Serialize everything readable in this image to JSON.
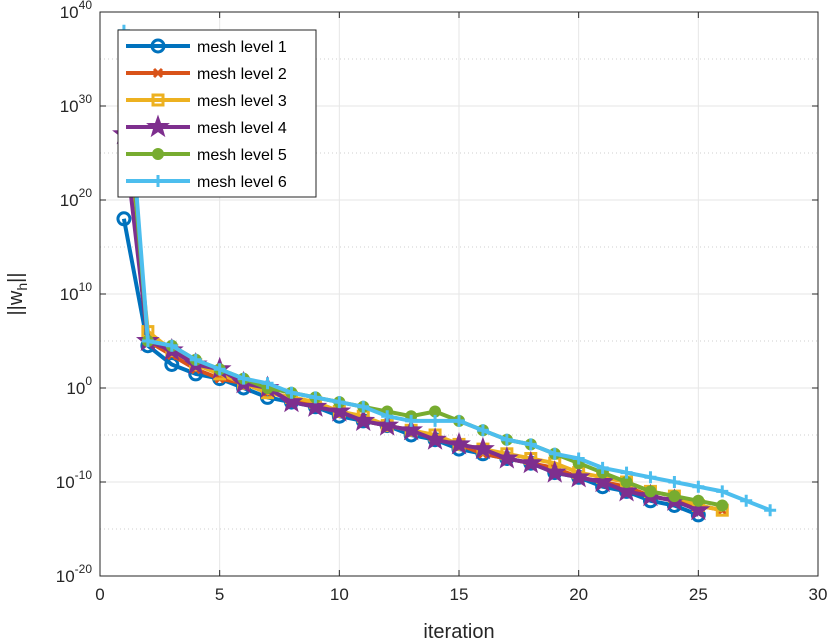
{
  "chart_data": {
    "type": "line",
    "title": "",
    "xlabel": "iteration",
    "ylabel_main": "||w",
    "ylabel_sub": "h",
    "ylabel_end": "||",
    "xlim": [
      0,
      30
    ],
    "ylim_exp": [
      -20,
      40
    ],
    "yscale": "log",
    "grid": true,
    "legend_position": "top-left",
    "xticks": [
      0,
      5,
      10,
      15,
      20,
      25,
      30
    ],
    "xtick_labels": [
      "0",
      "5",
      "10",
      "15",
      "20",
      "25",
      "30"
    ],
    "yticks_exp": [
      -20,
      -10,
      0,
      10,
      20,
      30,
      40
    ],
    "ytick_labels": [
      "10",
      "10",
      "10",
      "10",
      "10",
      "10",
      "10"
    ],
    "ytick_exponents": [
      "-20",
      "-10",
      "0",
      "10",
      "20",
      "30",
      "40"
    ],
    "series": [
      {
        "name": "mesh level 1",
        "color": "#0072BD",
        "marker": "circle",
        "x": [
          1,
          2,
          3,
          4,
          5,
          6,
          7,
          8,
          9,
          10,
          11,
          12,
          13,
          14,
          15,
          16,
          17,
          18,
          19,
          20,
          21,
          22,
          23,
          24,
          25
        ],
        "log10y": [
          18,
          4.5,
          2.5,
          1.5,
          1,
          0,
          -1,
          -1.5,
          -2,
          -3,
          -3.5,
          -4,
          -5,
          -5.5,
          -6.5,
          -7,
          -7.5,
          -8,
          -9,
          -9.5,
          -10.5,
          -11,
          -12,
          -12.5,
          -13.5
        ]
      },
      {
        "name": "mesh level 2",
        "color": "#D95319",
        "marker": "x",
        "x": [
          1,
          2,
          3,
          4,
          5,
          6,
          7,
          8,
          9,
          10,
          11,
          12,
          13,
          14,
          15,
          16,
          17,
          18,
          19,
          20,
          21,
          22,
          23,
          24,
          25,
          26
        ],
        "log10y": [
          28,
          5,
          3.5,
          2,
          1,
          0.5,
          -0.5,
          -1,
          -2,
          -2.5,
          -3.5,
          -4,
          -4.5,
          -5.5,
          -6,
          -7,
          -7.5,
          -8,
          -8.5,
          -9.5,
          -10,
          -10.5,
          -11.5,
          -12,
          -12.5,
          -13
        ]
      },
      {
        "name": "mesh level 3",
        "color": "#EDB120",
        "marker": "square",
        "x": [
          1,
          2,
          3,
          4,
          5,
          6,
          7,
          8,
          9,
          10,
          11,
          12,
          13,
          14,
          15,
          16,
          17,
          18,
          19,
          20,
          21,
          22,
          23,
          24,
          25,
          26
        ],
        "log10y": [
          30,
          6,
          4,
          2.5,
          1.5,
          0.5,
          -0.5,
          -1,
          -1.5,
          -2.5,
          -3,
          -4,
          -4.5,
          -5,
          -6,
          -6.5,
          -7,
          -7.5,
          -8,
          -9,
          -9.5,
          -10,
          -11,
          -11.5,
          -12.5,
          -13
        ]
      },
      {
        "name": "mesh level 4",
        "color": "#7E2F8E",
        "marker": "star",
        "x": [
          1,
          2,
          3,
          4,
          5,
          6,
          7,
          8,
          9,
          10,
          11,
          12,
          13,
          14,
          15,
          16,
          17,
          18,
          19,
          20,
          21,
          22,
          23,
          24,
          25
        ],
        "log10y": [
          27,
          5,
          4,
          2.5,
          2,
          0.5,
          0,
          -1.5,
          -2,
          -2.5,
          -3.5,
          -4,
          -4.5,
          -5.5,
          -6,
          -6.5,
          -7.5,
          -8,
          -9,
          -9.5,
          -10,
          -11,
          -11.5,
          -12,
          -13
        ]
      },
      {
        "name": "mesh level 5",
        "color": "#77AC30",
        "marker": "dot",
        "x": [
          1,
          2,
          3,
          4,
          5,
          6,
          7,
          8,
          9,
          10,
          11,
          12,
          13,
          14,
          15,
          16,
          17,
          18,
          19,
          20,
          21,
          22,
          23,
          24,
          25,
          26
        ],
        "log10y": [
          35,
          5,
          4.5,
          3,
          2,
          1,
          0,
          -0.5,
          -1,
          -1.5,
          -2,
          -2.5,
          -3,
          -2.5,
          -3.5,
          -4.5,
          -5.5,
          -6,
          -7,
          -8,
          -9,
          -10,
          -11,
          -11.5,
          -12,
          -12.5
        ]
      },
      {
        "name": "mesh level 6",
        "color": "#4DBEEE",
        "marker": "plus",
        "x": [
          1,
          2,
          3,
          4,
          5,
          6,
          7,
          8,
          9,
          10,
          11,
          12,
          13,
          14,
          15,
          16,
          17,
          18,
          19,
          20,
          21,
          22,
          23,
          24,
          25,
          26,
          27,
          28
        ],
        "log10y": [
          38,
          5,
          4.5,
          3,
          2,
          1,
          0.5,
          -0.5,
          -1,
          -1.5,
          -2,
          -3,
          -3.5,
          -3.5,
          -3.5,
          -4.5,
          -5.5,
          -6,
          -7,
          -7.5,
          -8.5,
          -9,
          -9.5,
          -10,
          -10.5,
          -11,
          -12,
          -13
        ]
      }
    ]
  }
}
